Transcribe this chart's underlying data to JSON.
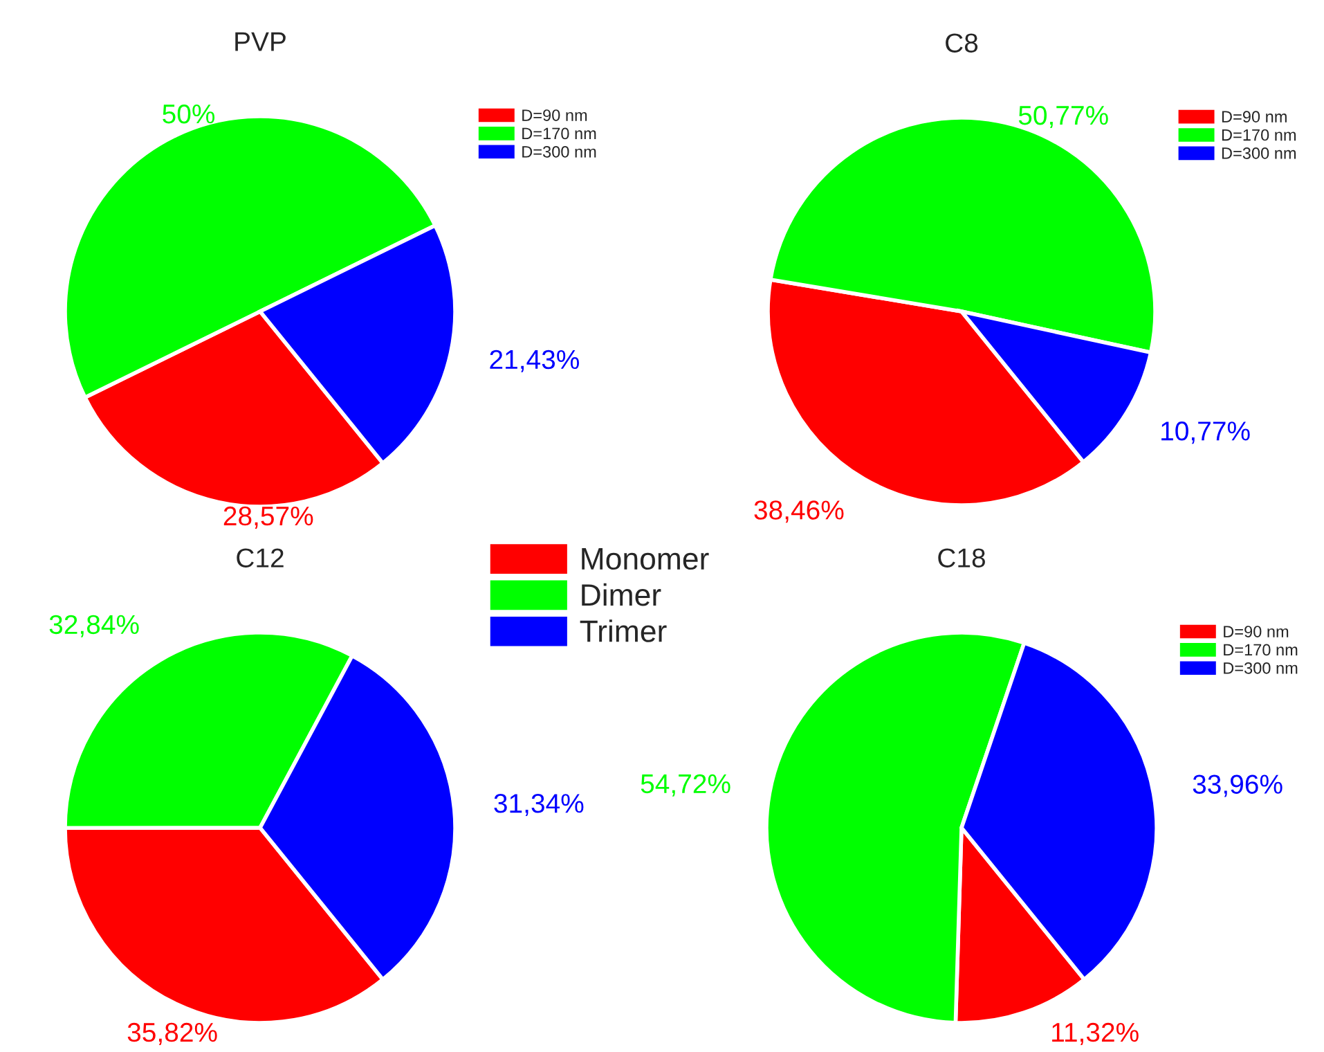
{
  "chart_data": [
    {
      "type": "pie",
      "title": "PVP",
      "categories": [
        "D=90 nm",
        "D=170 nm",
        "D=300 nm"
      ],
      "values": [
        28.57,
        50,
        21.43
      ],
      "value_labels": [
        "28,57%",
        "50%",
        "21,43%"
      ],
      "colors": [
        "#ff0000",
        "#00ff00",
        "#0000ff"
      ],
      "legend": "top right"
    },
    {
      "type": "pie",
      "title": "C8",
      "categories": [
        "D=90 nm",
        "D=170 nm",
        "D=300 nm"
      ],
      "values": [
        38.46,
        50.77,
        10.77
      ],
      "value_labels": [
        "38,46%",
        "50,77%",
        "10,77%"
      ],
      "colors": [
        "#ff0000",
        "#00ff00",
        "#0000ff"
      ],
      "legend": "top right"
    },
    {
      "type": "pie",
      "title": "C12",
      "categories": [
        "Monomer",
        "Dimer",
        "Trimer"
      ],
      "values": [
        35.82,
        32.84,
        31.34
      ],
      "value_labels": [
        "35,82%",
        "32,84%",
        "31,34%"
      ],
      "colors": [
        "#ff0000",
        "#00ff00",
        "#0000ff"
      ],
      "legend": "top"
    },
    {
      "type": "pie",
      "title": "C18",
      "categories": [
        "D=90 nm",
        "D=170 nm",
        "D=300 nm"
      ],
      "values": [
        11.32,
        54.72,
        33.96
      ],
      "value_labels": [
        "11,32%",
        "54,72%",
        "33,96%"
      ],
      "colors": [
        "#ff0000",
        "#00ff00",
        "#0000ff"
      ],
      "legend": "top right"
    }
  ]
}
